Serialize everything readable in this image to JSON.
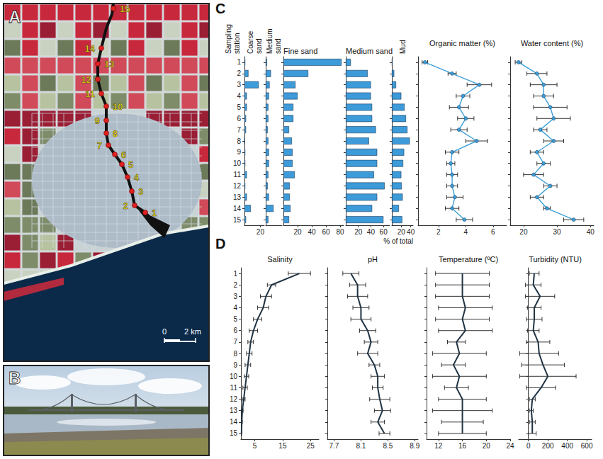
{
  "panels": {
    "A": {
      "label": "A",
      "stations": [
        "1",
        "2",
        "3",
        "4",
        "5",
        "6",
        "7",
        "8",
        "9",
        "10",
        "11",
        "12",
        "13",
        "14",
        "15"
      ],
      "scale": [
        "0",
        "2 km"
      ]
    },
    "B": {
      "label": "B"
    },
    "C": {
      "label": "C",
      "row_label": "Sampling station",
      "x_label": "% of total"
    },
    "D": {
      "label": "D"
    }
  },
  "chart_data": [
    {
      "panel": "C",
      "type": "bar",
      "title": "Coarse sand",
      "orientation": "horizontal",
      "color": "#3d9bd9",
      "tick_labels": true,
      "categories": [
        "1",
        "2",
        "3",
        "4",
        "5",
        "6",
        "7",
        "8",
        "9",
        "10",
        "11",
        "12",
        "13",
        "14",
        "15"
      ],
      "values": [
        1,
        5,
        18,
        3,
        3,
        2,
        2,
        0.5,
        1,
        1,
        3,
        1,
        3,
        8,
        2
      ],
      "xlim": [
        0,
        25
      ],
      "xticks": [
        20
      ]
    },
    {
      "panel": "C",
      "type": "bar",
      "title": "Medium sand",
      "orientation": "horizontal",
      "color": "#3d9bd9",
      "tick_labels": false,
      "categories": [
        "1",
        "2",
        "3",
        "4",
        "5",
        "6",
        "7",
        "8",
        "9",
        "10",
        "11",
        "12",
        "13",
        "14",
        "15"
      ],
      "values": [
        2,
        8,
        6,
        5,
        4,
        4,
        3,
        4,
        5,
        5,
        4,
        3,
        5,
        12,
        4
      ],
      "xlim": [
        0,
        25
      ],
      "xticks": []
    },
    {
      "panel": "C",
      "type": "bar",
      "title": "Fine sand",
      "orientation": "horizontal",
      "color": "#3d9bd9",
      "tick_labels": "x",
      "categories": [
        "1",
        "2",
        "3",
        "4",
        "5",
        "6",
        "7",
        "8",
        "9",
        "10",
        "11",
        "12",
        "13",
        "14",
        "15"
      ],
      "values": [
        82,
        35,
        17,
        20,
        14,
        14,
        8,
        12,
        13,
        13,
        16,
        9,
        9,
        10,
        8
      ],
      "xlim": [
        0,
        85
      ],
      "xticks": [
        20,
        40,
        60,
        80
      ]
    },
    {
      "panel": "C",
      "type": "bar",
      "title": "Medium sand",
      "orientation": "horizontal",
      "color": "#3d9bd9",
      "tick_labels": "x",
      "categories": [
        "1",
        "2",
        "3",
        "4",
        "5",
        "6",
        "7",
        "8",
        "9",
        "10",
        "11",
        "12",
        "13",
        "14",
        "15"
      ],
      "values": [
        8,
        35,
        40,
        40,
        42,
        42,
        48,
        37,
        50,
        50,
        45,
        62,
        50,
        42,
        60
      ],
      "xlim": [
        0,
        70
      ],
      "xticks": [
        20,
        40,
        60
      ]
    },
    {
      "panel": "C",
      "type": "bar",
      "title": "Mud",
      "orientation": "horizontal",
      "color": "#3d9bd9",
      "tick_labels": "x",
      "categories": [
        "1",
        "2",
        "3",
        "4",
        "5",
        "6",
        "7",
        "8",
        "9",
        "10",
        "11",
        "12",
        "13",
        "14",
        "15"
      ],
      "values": [
        1,
        5,
        9,
        20,
        27,
        30,
        33,
        38,
        26,
        24,
        20,
        21,
        23,
        15,
        22
      ],
      "xlim": [
        0,
        45
      ],
      "xticks": [
        20,
        40
      ]
    },
    {
      "panel": "C",
      "type": "line",
      "title": "Organic matter (%)",
      "color": "#3c9fd8",
      "marker": "circle",
      "tick_labels": "x",
      "categories": [
        "1",
        "2",
        "3",
        "4",
        "5",
        "6",
        "7",
        "8",
        "9",
        "10",
        "11",
        "12",
        "13",
        "14",
        "15"
      ],
      "values": [
        1,
        3,
        5,
        3.8,
        3.5,
        4,
        3.5,
        4.8,
        3,
        2.9,
        3,
        3,
        3.2,
        3,
        3.9
      ],
      "errors": [
        0.2,
        0.3,
        0.9,
        0.5,
        0.7,
        0.6,
        0.6,
        0.8,
        0.5,
        0.3,
        0.4,
        0.4,
        0.6,
        0.5,
        0.6
      ],
      "xlim": [
        0.5,
        7
      ],
      "xticks": [
        2,
        4,
        6
      ]
    },
    {
      "panel": "C",
      "type": "line",
      "title": "Water content (%)",
      "color": "#3c9fd8",
      "marker": "circle",
      "tick_labels": "x",
      "categories": [
        "1",
        "2",
        "3",
        "4",
        "5",
        "6",
        "7",
        "8",
        "9",
        "10",
        "11",
        "12",
        "13",
        "14",
        "15"
      ],
      "values": [
        18.5,
        24,
        26,
        26,
        28,
        29,
        25,
        29,
        24,
        26,
        23,
        28,
        24,
        27,
        35
      ],
      "errors": [
        1,
        3,
        4,
        3,
        5,
        5,
        2,
        3,
        2,
        2,
        3,
        2,
        2,
        1,
        3
      ],
      "xlim": [
        16,
        41
      ],
      "xticks": [
        20,
        30,
        40
      ]
    },
    {
      "panel": "D",
      "type": "line",
      "title": "Salinity",
      "color": "#1f3344",
      "marker": "none",
      "tick_labels": true,
      "categories": [
        "1",
        "2",
        "3",
        "4",
        "5",
        "6",
        "7",
        "8",
        "9",
        "10",
        "11",
        "12",
        "13",
        "14",
        "15"
      ],
      "values": [
        21,
        11,
        9,
        8,
        6,
        4.5,
        3.5,
        3,
        2.5,
        2,
        1.5,
        1,
        0.5,
        0.3,
        0.2
      ],
      "errors": [
        4,
        1.5,
        2,
        2,
        1.5,
        1.5,
        1,
        1,
        1,
        0.8,
        0.8,
        0.5,
        0.3,
        0.2,
        0.1
      ],
      "xlim": [
        0,
        28
      ],
      "xticks": [
        5,
        15,
        25
      ]
    },
    {
      "panel": "D",
      "type": "line",
      "title": "pH",
      "color": "#1f3344",
      "marker": "none",
      "tick_labels": "x",
      "categories": [
        "1",
        "2",
        "3",
        "4",
        "5",
        "6",
        "7",
        "8",
        "9",
        "10",
        "11",
        "12",
        "13",
        "14",
        "15"
      ],
      "values": [
        7.95,
        8.05,
        8.05,
        8.1,
        8.1,
        8.2,
        8.25,
        8.2,
        8.3,
        8.35,
        8.35,
        8.38,
        8.42,
        8.35,
        8.45
      ],
      "errors": [
        0.12,
        0.12,
        0.15,
        0.12,
        0.15,
        0.12,
        0.1,
        0.15,
        0.08,
        0.1,
        0.08,
        0.15,
        0.12,
        0.1,
        0.08
      ],
      "xlim": [
        7.6,
        8.95
      ],
      "xticks": [
        7.7,
        8.1,
        8.5,
        8.9
      ]
    },
    {
      "panel": "D",
      "type": "line",
      "title": "Temperature (ºC)",
      "color": "#1f3344",
      "marker": "none",
      "tick_labels": "x",
      "categories": [
        "1",
        "2",
        "3",
        "4",
        "5",
        "6",
        "7",
        "8",
        "9",
        "10",
        "11",
        "12",
        "13",
        "14",
        "15"
      ],
      "values": [
        16,
        16,
        16,
        16.5,
        16,
        16.5,
        15,
        15.5,
        14.5,
        15.5,
        15,
        16,
        16,
        16,
        16
      ],
      "errors": [
        4.5,
        4.5,
        4.5,
        4.5,
        4.5,
        4.5,
        1.5,
        4.5,
        2,
        4.5,
        2,
        4,
        5,
        3.5,
        4
      ],
      "xlim": [
        10,
        24
      ],
      "xticks": [
        12,
        16,
        20,
        24
      ]
    },
    {
      "panel": "D",
      "type": "line",
      "title": "Turbidity (NTU)",
      "color": "#1f3344",
      "marker": "none",
      "tick_labels": "x",
      "categories": [
        "1",
        "2",
        "3",
        "4",
        "5",
        "6",
        "7",
        "8",
        "9",
        "10",
        "11",
        "12",
        "13",
        "14",
        "15"
      ],
      "values": [
        60,
        50,
        120,
        60,
        60,
        50,
        100,
        110,
        150,
        200,
        130,
        40,
        30,
        40,
        40
      ],
      "errors": [
        50,
        80,
        150,
        70,
        80,
        60,
        120,
        200,
        220,
        290,
        150,
        30,
        20,
        30,
        40
      ],
      "xlim": [
        -100,
        650
      ],
      "xticks": [
        0,
        200,
        400,
        600
      ]
    }
  ]
}
